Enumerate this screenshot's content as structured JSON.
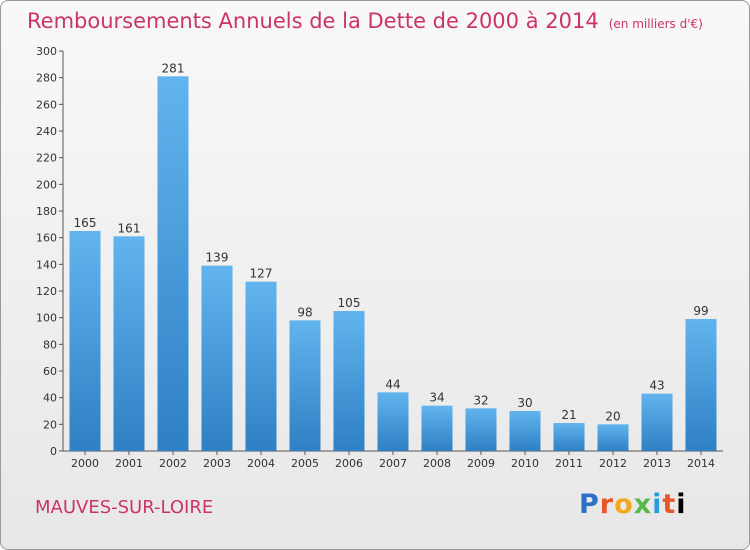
{
  "chart_data": {
    "type": "bar",
    "title": "Remboursements Annuels de la Dette de 2000 à 2014",
    "unit": "(en milliers d'€)",
    "categories": [
      "2000",
      "2001",
      "2002",
      "2003",
      "2004",
      "2005",
      "2006",
      "2007",
      "2008",
      "2009",
      "2010",
      "2011",
      "2012",
      "2013",
      "2014"
    ],
    "values": [
      165,
      161,
      281,
      139,
      127,
      98,
      105,
      44,
      34,
      32,
      30,
      21,
      20,
      43,
      99
    ],
    "ylim": [
      0,
      300
    ],
    "yticks": [
      0,
      20,
      40,
      60,
      80,
      100,
      120,
      140,
      160,
      180,
      200,
      220,
      240,
      260,
      280,
      300
    ],
    "grid": false,
    "bar_color": "#4a9fe0"
  },
  "footer": {
    "city": "MAUVES-SUR-LOIRE",
    "logo_letters": [
      "P",
      "r",
      "o",
      "x",
      "i",
      "t",
      "i"
    ]
  }
}
